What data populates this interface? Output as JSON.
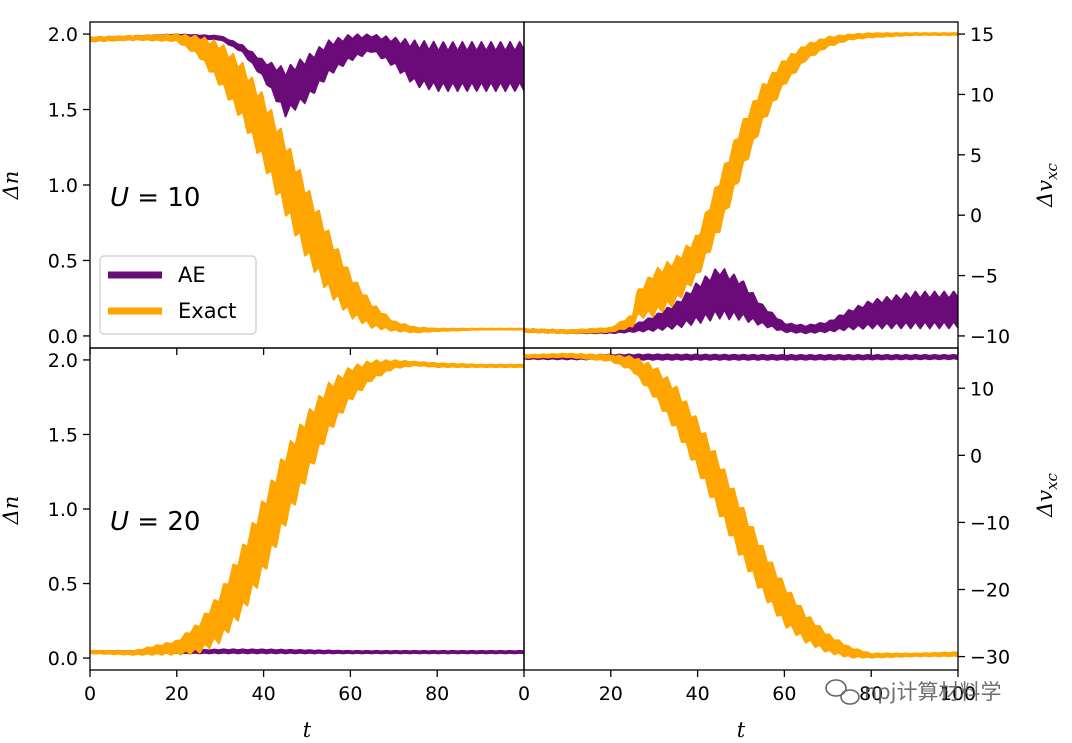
{
  "watermark": "npj计算材料学",
  "colors": {
    "ae": "#6b0a79",
    "exact": "#ffa500",
    "axis": "#000000"
  },
  "chart_data": [
    {
      "type": "line",
      "panel": "top-left",
      "annotation": "U = 10",
      "annotation_parts": {
        "symbol": "U",
        "rest": " = 10"
      },
      "ylabel": "Δn",
      "xlim": [
        0,
        100
      ],
      "ylim": [
        -0.08,
        2.08
      ],
      "yticks": [
        0.0,
        0.5,
        1.0,
        1.5,
        2.0
      ],
      "ytick_labels": [
        "0.0",
        "0.5",
        "1.0",
        "1.5",
        "2.0"
      ],
      "legend": {
        "placement": "lower-left",
        "entries": [
          "AE",
          "Exact"
        ]
      },
      "series": [
        {
          "name": "AE",
          "color": "#6b0a79",
          "band": {
            "x": [
              0,
              10,
              20,
              30,
              35,
              40,
              45,
              50,
              55,
              60,
              65,
              70,
              75,
              80,
              90,
              100
            ],
            "lo": [
              1.95,
              1.96,
              1.98,
              1.96,
              1.88,
              1.7,
              1.45,
              1.55,
              1.72,
              1.82,
              1.88,
              1.78,
              1.65,
              1.62,
              1.62,
              1.62
            ],
            "hi": [
              1.98,
              1.99,
              2.0,
              1.99,
              1.93,
              1.83,
              1.78,
              1.86,
              1.96,
              2.0,
              2.0,
              1.98,
              1.96,
              1.95,
              1.95,
              1.95
            ]
          }
        },
        {
          "name": "Exact",
          "color": "#ffa500",
          "band": {
            "x": [
              0,
              10,
              20,
              25,
              30,
              35,
              40,
              45,
              50,
              55,
              60,
              65,
              70,
              75,
              80,
              90,
              100
            ],
            "lo": [
              1.95,
              1.96,
              1.95,
              1.85,
              1.65,
              1.42,
              1.12,
              0.8,
              0.5,
              0.27,
              0.12,
              0.05,
              0.03,
              0.02,
              0.03,
              0.04,
              0.04
            ],
            "hi": [
              1.98,
              1.99,
              2.0,
              1.99,
              1.95,
              1.82,
              1.6,
              1.32,
              1.0,
              0.7,
              0.42,
              0.22,
              0.1,
              0.06,
              0.05,
              0.05,
              0.05
            ]
          }
        }
      ]
    },
    {
      "type": "line",
      "panel": "top-right",
      "ylabel": "Δv_xc",
      "ylabel_parts": {
        "main": "Δv",
        "sub": "xc"
      },
      "xlim": [
        0,
        100
      ],
      "ylim": [
        -11,
        16
      ],
      "yticks": [
        -10,
        -5,
        0,
        5,
        10,
        15
      ],
      "ytick_labels": [
        "−10",
        "−5",
        "0",
        "5",
        "10",
        "15"
      ],
      "series": [
        {
          "name": "AE",
          "color": "#6b0a79",
          "band": {
            "x": [
              0,
              10,
              20,
              25,
              30,
              35,
              40,
              45,
              50,
              55,
              60,
              65,
              70,
              75,
              80,
              90,
              100
            ],
            "lo": [
              -9.7,
              -9.8,
              -9.8,
              -9.7,
              -9.6,
              -9.4,
              -9.0,
              -8.6,
              -8.7,
              -9.2,
              -9.7,
              -9.8,
              -9.7,
              -9.5,
              -9.4,
              -9.4,
              -9.4
            ],
            "hi": [
              -9.4,
              -9.5,
              -9.4,
              -9.1,
              -8.3,
              -7.2,
              -5.5,
              -4.2,
              -5.2,
              -7.4,
              -8.9,
              -9.1,
              -8.8,
              -7.8,
              -7.0,
              -6.3,
              -6.3
            ]
          }
        },
        {
          "name": "Exact",
          "color": "#ffa500",
          "band": {
            "x": [
              0,
              10,
              20,
              25,
              26,
              30,
              35,
              40,
              45,
              50,
              55,
              60,
              65,
              70,
              75,
              80,
              90,
              100
            ],
            "lo": [
              -9.7,
              -9.8,
              -9.7,
              -9.3,
              -8.6,
              -8.4,
              -7.4,
              -5.2,
              -1.5,
              3.2,
              7.5,
              10.7,
              12.8,
              13.9,
              14.5,
              14.7,
              14.9,
              14.9
            ],
            "hi": [
              -9.4,
              -9.5,
              -9.3,
              -8.2,
              -6.3,
              -4.5,
              -3.4,
              -1.5,
              3.2,
              7.6,
              10.9,
              13.0,
              14.2,
              14.8,
              15.0,
              15.1,
              15.1,
              15.1
            ]
          }
        }
      ]
    },
    {
      "type": "line",
      "panel": "bottom-left",
      "annotation": "U = 20",
      "annotation_parts": {
        "symbol": "U",
        "rest": " = 20"
      },
      "xlabel": "t",
      "ylabel": "Δn",
      "xlim": [
        0,
        100
      ],
      "ylim": [
        -0.08,
        2.08
      ],
      "xticks": [
        0,
        20,
        40,
        60,
        80
      ],
      "xtick_labels": [
        "0",
        "20",
        "40",
        "60",
        "80"
      ],
      "yticks": [
        0.0,
        0.5,
        1.0,
        1.5,
        2.0
      ],
      "ytick_labels": [
        "0.0",
        "0.5",
        "1.0",
        "1.5",
        "2.0"
      ],
      "series": [
        {
          "name": "AE",
          "color": "#6b0a79",
          "band": {
            "x": [
              0,
              20,
              30,
              40,
              60,
              80,
              100
            ],
            "lo": [
              0.03,
              0.03,
              0.03,
              0.03,
              0.03,
              0.03,
              0.03
            ],
            "hi": [
              0.05,
              0.05,
              0.06,
              0.06,
              0.05,
              0.05,
              0.05
            ]
          }
        },
        {
          "name": "Exact",
          "color": "#ffa500",
          "band": {
            "x": [
              0,
              10,
              20,
              25,
              30,
              35,
              40,
              45,
              50,
              55,
              60,
              65,
              70,
              75,
              80,
              90,
              100
            ],
            "lo": [
              0.03,
              0.02,
              0.02,
              0.03,
              0.1,
              0.28,
              0.55,
              0.88,
              1.2,
              1.5,
              1.72,
              1.86,
              1.94,
              1.96,
              1.95,
              1.95,
              1.95
            ],
            "hi": [
              0.05,
              0.05,
              0.12,
              0.24,
              0.45,
              0.75,
              1.08,
              1.4,
              1.65,
              1.85,
              1.96,
              2.0,
              2.0,
              1.99,
              1.98,
              1.97,
              1.97
            ]
          }
        }
      ]
    },
    {
      "type": "line",
      "panel": "bottom-right",
      "xlabel": "t",
      "ylabel": "Δv_xc",
      "ylabel_parts": {
        "main": "Δv",
        "sub": "xc"
      },
      "xlim": [
        0,
        100
      ],
      "ylim": [
        -32,
        16
      ],
      "xticks": [
        0,
        20,
        40,
        60,
        80,
        100
      ],
      "xtick_labels": [
        "0",
        "20",
        "40",
        "60",
        "80",
        "100"
      ],
      "yticks": [
        -30,
        -20,
        -10,
        0,
        10
      ],
      "ytick_labels": [
        "−30",
        "−20",
        "−10",
        "0",
        "10"
      ],
      "series": [
        {
          "name": "AE",
          "color": "#6b0a79",
          "band": {
            "x": [
              0,
              30,
              60,
              100
            ],
            "lo": [
              14.3,
              14.2,
              14.2,
              14.3
            ],
            "hi": [
              15.0,
              15.1,
              15.0,
              15.0
            ]
          }
        },
        {
          "name": "Exact",
          "color": "#ffa500",
          "band": {
            "x": [
              0,
              10,
              20,
              25,
              30,
              35,
              40,
              45,
              50,
              55,
              60,
              65,
              70,
              75,
              80,
              90,
              100
            ],
            "lo": [
              14.5,
              14.6,
              14.0,
              12.5,
              8.5,
              3.5,
              -2.5,
              -9.0,
              -15.5,
              -21.0,
              -25.5,
              -28.0,
              -29.5,
              -30.2,
              -30.2,
              -30.0,
              -30.0
            ],
            "hi": [
              15.0,
              15.2,
              15.0,
              14.8,
              13.5,
              10.5,
              5.5,
              -0.5,
              -7.0,
              -13.5,
              -19.0,
              -23.5,
              -26.5,
              -28.5,
              -29.5,
              -29.5,
              -29.3
            ]
          }
        }
      ]
    }
  ]
}
